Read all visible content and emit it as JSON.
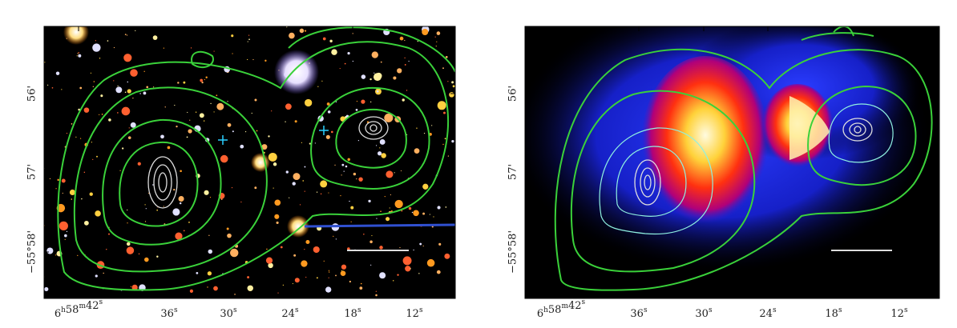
{
  "panels": [
    {
      "y_labels": [
        "56'",
        "57'",
        "−55°58'"
      ],
      "x_labels": [
        "6h58m42s",
        "36s",
        "30s",
        "24s",
        "18s",
        "12s"
      ]
    },
    {
      "y_labels": [
        "56'",
        "57'",
        "−55°58'"
      ],
      "x_labels": [
        "6h58m42s",
        "36s",
        "30s",
        "24s",
        "18s",
        "12s"
      ]
    }
  ]
}
